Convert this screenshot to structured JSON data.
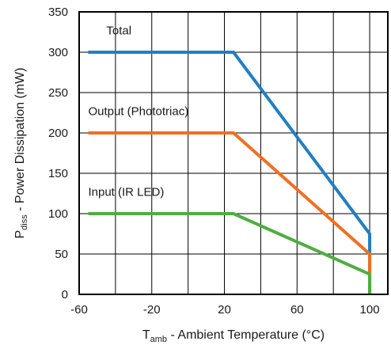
{
  "chart_data": {
    "type": "line",
    "xlabel": {
      "main": "T",
      "sub": "amb",
      "rest": " - Ambient Temperature (°C)"
    },
    "ylabel": {
      "main": "P",
      "sub": "diss",
      "rest": " - Power Dissipation (mW)"
    },
    "xlim": [
      -60,
      110
    ],
    "ylim": [
      0,
      350
    ],
    "xticks": [
      -60,
      -20,
      20,
      60,
      100
    ],
    "yticks": [
      0,
      50,
      100,
      150,
      200,
      250,
      300,
      350
    ],
    "grid": true,
    "series": [
      {
        "name": "Total",
        "color": "#1f7fc4",
        "x": [
          -55,
          25,
          100,
          100
        ],
        "y": [
          300,
          300,
          75,
          0
        ]
      },
      {
        "name": "Output (Phototriac)",
        "color": "#f26f21",
        "x": [
          -55,
          25,
          100,
          100
        ],
        "y": [
          200,
          200,
          50,
          0
        ]
      },
      {
        "name": "Input (IR LED)",
        "color": "#4caf3f",
        "x": [
          -55,
          25,
          100,
          100
        ],
        "y": [
          100,
          100,
          25,
          0
        ]
      }
    ],
    "annotations": [
      {
        "text": "Total",
        "x": -45,
        "y": 322
      },
      {
        "text": "Output (Phototriac)",
        "x": -55,
        "y": 222
      },
      {
        "text": "Input (IR LED)",
        "x": -55,
        "y": 122
      }
    ]
  }
}
